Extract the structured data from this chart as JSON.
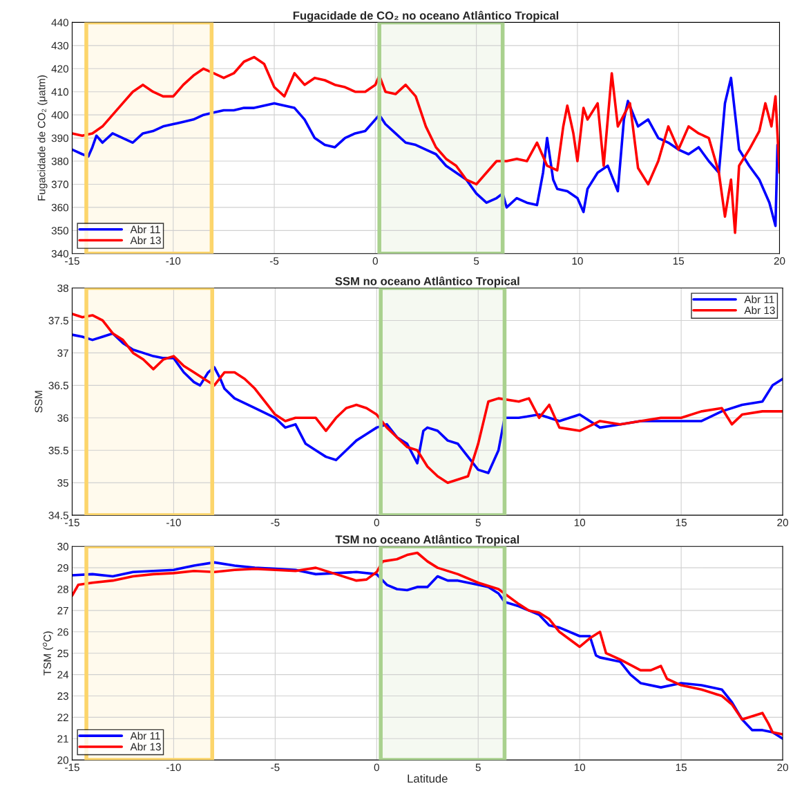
{
  "chart_data": [
    {
      "type": "line",
      "title": "Fugacidade de CO₂ no oceano Atlântico Tropical",
      "ylabel": "Fugacidade de CO₂ (μatm)",
      "xlim": [
        -15,
        20
      ],
      "xticks": [
        -15,
        -10,
        -5,
        0,
        5,
        10,
        15,
        20
      ],
      "ylim": [
        340,
        440
      ],
      "yticks": [
        340,
        350,
        360,
        370,
        380,
        390,
        400,
        410,
        420,
        430,
        440
      ],
      "grid": true,
      "legend": "bottom left",
      "bands": [
        {
          "axis": "x",
          "from": -14.3,
          "to": -8.1,
          "color": "#fcd56b"
        },
        {
          "axis": "x",
          "from": 0.2,
          "to": 6.3,
          "color": "#a9d18e"
        }
      ],
      "series": [
        {
          "name": "Abr 11",
          "color": "#0000ff",
          "x": [
            -15,
            -14.5,
            -14.2,
            -14,
            -13.8,
            -13.5,
            -13,
            -12.5,
            -12,
            -11.5,
            -11,
            -10.5,
            -10,
            -9.5,
            -9,
            -8.5,
            -8,
            -7.5,
            -7,
            -6.5,
            -6,
            -5.5,
            -5,
            -4.5,
            -4,
            -3.5,
            -3,
            -2.5,
            -2,
            -1.5,
            -1,
            -0.5,
            0,
            0.2,
            0.5,
            1,
            1.5,
            2,
            2.5,
            3,
            3.5,
            4,
            4.5,
            5,
            5.5,
            6,
            6.3,
            6.5,
            7,
            7.5,
            8,
            8.3,
            8.5,
            8.8,
            9,
            9.5,
            10,
            10.3,
            10.5,
            11,
            11.5,
            12,
            12.3,
            12.5,
            13,
            13.5,
            14,
            14.5,
            15,
            15.5,
            16,
            16.5,
            17,
            17.3,
            17.6,
            18,
            18.5,
            19,
            19.5,
            19.8,
            19.9
          ],
          "values": [
            385,
            383,
            382,
            386,
            391,
            388,
            392,
            390,
            388,
            392,
            393,
            395,
            396,
            397,
            398,
            400,
            401,
            402,
            402,
            403,
            403,
            404,
            405,
            404,
            403,
            398,
            390,
            387,
            386,
            390,
            392,
            393,
            398,
            400,
            396,
            392,
            388,
            387,
            385,
            383,
            378,
            375,
            372,
            366,
            362,
            364,
            366,
            360,
            364,
            362,
            361,
            375,
            390,
            372,
            368,
            367,
            364,
            358,
            368,
            375,
            378,
            367,
            398,
            406,
            395,
            398,
            390,
            388,
            385,
            383,
            386,
            380,
            375,
            405,
            416,
            385,
            378,
            372,
            362,
            352,
            387
          ]
        },
        {
          "name": "Abr 13",
          "color": "#ff0000",
          "x": [
            -15,
            -14.5,
            -14,
            -13.5,
            -13,
            -12.5,
            -12,
            -11.5,
            -11,
            -10.5,
            -10,
            -9.5,
            -9,
            -8.5,
            -8,
            -7.5,
            -7,
            -6.5,
            -6,
            -5.5,
            -5,
            -4.5,
            -4,
            -3.5,
            -3,
            -2.5,
            -2,
            -1.5,
            -1,
            -0.5,
            0,
            0.2,
            0.5,
            1,
            1.5,
            2,
            2.5,
            3,
            3.5,
            4,
            4.5,
            5,
            5.5,
            6,
            6.5,
            7,
            7.5,
            8,
            8.5,
            9,
            9.3,
            9.5,
            9.8,
            10,
            10.3,
            10.5,
            11,
            11.3,
            11.7,
            12,
            12.3,
            12.6,
            13,
            13.5,
            14,
            14.5,
            15,
            15.5,
            16,
            16.5,
            17,
            17.3,
            17.6,
            17.8,
            18,
            18.5,
            19,
            19.3,
            19.6,
            19.8,
            20
          ],
          "values": [
            392,
            391,
            392,
            395,
            400,
            405,
            410,
            413,
            410,
            408,
            408,
            413,
            417,
            420,
            418,
            416,
            418,
            423,
            425,
            422,
            412,
            408,
            418,
            413,
            416,
            415,
            413,
            412,
            410,
            410,
            413,
            417,
            410,
            409,
            413,
            408,
            395,
            386,
            381,
            378,
            372,
            370,
            375,
            380,
            380,
            381,
            380,
            388,
            378,
            376,
            395,
            404,
            392,
            380,
            403,
            398,
            405,
            378,
            418,
            395,
            400,
            405,
            377,
            370,
            380,
            395,
            385,
            395,
            392,
            390,
            375,
            356,
            372,
            349,
            378,
            385,
            393,
            405,
            395,
            408,
            375
          ]
        }
      ]
    },
    {
      "type": "line",
      "title": "SSM no oceano Atlântico Tropical",
      "ylabel": "SSM",
      "xlim": [
        -15,
        20
      ],
      "xticks": [
        -15,
        -10,
        -5,
        0,
        5,
        10,
        15,
        20
      ],
      "ylim": [
        34.5,
        38
      ],
      "yticks": [
        34.5,
        35,
        35.5,
        36,
        36.5,
        37,
        37.5,
        38
      ],
      "grid": true,
      "legend": "top right",
      "bands": [
        {
          "axis": "x",
          "from": -14.3,
          "to": -8.1,
          "color": "#fcd56b"
        },
        {
          "axis": "x",
          "from": 0.2,
          "to": 6.3,
          "color": "#a9d18e"
        }
      ],
      "series": [
        {
          "name": "Abr 11",
          "color": "#0000ff",
          "x": [
            -15,
            -14.5,
            -14,
            -13.5,
            -13,
            -12.5,
            -12,
            -11.5,
            -11,
            -10.5,
            -10,
            -9.5,
            -9,
            -8.7,
            -8.3,
            -8,
            -7.7,
            -7.5,
            -7,
            -6,
            -5,
            -4.5,
            -4,
            -3.5,
            -3,
            -2.5,
            -2,
            -1.5,
            -1,
            -0.5,
            0,
            0.5,
            1,
            1.5,
            2,
            2.3,
            2.5,
            3,
            3.5,
            4,
            4.5,
            5,
            5.5,
            6,
            6.3,
            7,
            8,
            9,
            10,
            11,
            12,
            13,
            14,
            15,
            16,
            17,
            18,
            19,
            19.5,
            20
          ],
          "values": [
            37.28,
            37.25,
            37.2,
            37.25,
            37.3,
            37.15,
            37.05,
            37.0,
            36.95,
            36.92,
            36.92,
            36.7,
            36.55,
            36.5,
            36.7,
            36.78,
            36.6,
            36.45,
            36.3,
            36.15,
            36.0,
            35.85,
            35.9,
            35.6,
            35.5,
            35.4,
            35.35,
            35.5,
            35.65,
            35.75,
            35.85,
            35.9,
            35.7,
            35.6,
            35.3,
            35.8,
            35.85,
            35.8,
            35.65,
            35.6,
            35.4,
            35.2,
            35.15,
            35.5,
            36.0,
            36.0,
            36.05,
            35.95,
            36.05,
            35.85,
            35.9,
            35.95,
            35.95,
            35.95,
            35.95,
            36.1,
            36.2,
            36.25,
            36.5,
            36.6
          ]
        },
        {
          "name": "Abr 13",
          "color": "#ff0000",
          "x": [
            -15,
            -14.5,
            -14,
            -13.5,
            -13,
            -12.5,
            -12,
            -11.5,
            -11,
            -10.5,
            -10,
            -9.5,
            -9,
            -8.5,
            -8,
            -7.5,
            -7,
            -6.5,
            -6,
            -5.5,
            -5,
            -4.5,
            -4,
            -3,
            -2.5,
            -2,
            -1.5,
            -1,
            -0.5,
            0,
            0.5,
            1,
            1.5,
            2,
            2.5,
            3,
            3.5,
            4,
            4.5,
            5,
            5.5,
            6,
            7,
            7.5,
            8,
            8.5,
            9,
            10,
            11,
            12,
            13,
            14,
            15,
            16,
            17,
            17.5,
            18,
            19,
            20
          ],
          "values": [
            37.6,
            37.55,
            37.58,
            37.5,
            37.3,
            37.2,
            37.0,
            36.9,
            36.75,
            36.9,
            36.95,
            36.8,
            36.7,
            36.6,
            36.5,
            36.7,
            36.7,
            36.6,
            36.45,
            36.25,
            36.05,
            35.95,
            36.0,
            36.0,
            35.8,
            36.0,
            36.15,
            36.2,
            36.15,
            36.05,
            35.85,
            35.7,
            35.55,
            35.5,
            35.25,
            35.1,
            35.0,
            35.05,
            35.1,
            35.6,
            36.25,
            36.3,
            36.25,
            36.3,
            36.0,
            36.2,
            35.85,
            35.8,
            35.95,
            35.9,
            35.95,
            36.0,
            36.0,
            36.1,
            36.15,
            35.9,
            36.05,
            36.1,
            36.1
          ]
        }
      ]
    },
    {
      "type": "line",
      "title": "TSM no oceano Atlântico Tropical",
      "xlabel": "Latitude",
      "ylabel": "TSM ($^{o}$C)",
      "xlim": [
        -15,
        20
      ],
      "xticks": [
        -15,
        -10,
        -5,
        0,
        5,
        10,
        15,
        20
      ],
      "ylim": [
        20,
        30
      ],
      "yticks": [
        20,
        21,
        22,
        23,
        24,
        25,
        26,
        27,
        28,
        29,
        30
      ],
      "grid": true,
      "legend": "bottom left",
      "bands": [
        {
          "axis": "x",
          "from": -14.3,
          "to": -8.1,
          "color": "#fcd56b"
        },
        {
          "axis": "x",
          "from": 0.2,
          "to": 6.3,
          "color": "#a9d18e"
        }
      ],
      "series": [
        {
          "name": "Abr 11",
          "color": "#0000ff",
          "x": [
            -15,
            -14,
            -13,
            -12,
            -11,
            -10,
            -9,
            -8,
            -7,
            -6,
            -5,
            -4,
            -3,
            -2,
            -1,
            0,
            0.5,
            1,
            1.5,
            2,
            2.5,
            3,
            3.5,
            4,
            5,
            5.5,
            6,
            6.3,
            7,
            8,
            8.5,
            9,
            10,
            10.5,
            10.8,
            11,
            12,
            12.5,
            13,
            14,
            15,
            16,
            17,
            17.5,
            18,
            18.5,
            19,
            19.5,
            20
          ],
          "values": [
            28.65,
            28.7,
            28.6,
            28.8,
            28.85,
            28.9,
            29.1,
            29.25,
            29.1,
            29.0,
            28.95,
            28.9,
            28.7,
            28.75,
            28.8,
            28.7,
            28.2,
            28.0,
            27.95,
            28.1,
            28.1,
            28.6,
            28.4,
            28.4,
            28.2,
            28.1,
            27.8,
            27.4,
            27.2,
            26.8,
            26.3,
            26.2,
            25.8,
            25.8,
            24.9,
            24.8,
            24.6,
            24.0,
            23.6,
            23.4,
            23.6,
            23.5,
            23.3,
            22.7,
            21.9,
            21.4,
            21.4,
            21.3,
            21.0
          ]
        },
        {
          "name": "Abr 13",
          "color": "#ff0000",
          "x": [
            -15,
            -14.7,
            -14,
            -13,
            -12,
            -11,
            -10,
            -9,
            -8,
            -7,
            -6,
            -5,
            -4,
            -3,
            -2,
            -1,
            -0.5,
            0,
            0.3,
            1,
            1.5,
            2,
            2.5,
            3,
            4,
            5,
            6,
            7,
            7.5,
            8,
            8.5,
            9,
            10,
            10.5,
            11,
            11.3,
            12,
            13,
            13.5,
            14,
            14.3,
            15,
            16,
            17,
            17.5,
            18,
            19,
            19.3,
            19.5,
            20
          ],
          "values": [
            27.7,
            28.2,
            28.3,
            28.4,
            28.6,
            28.7,
            28.75,
            28.85,
            28.8,
            28.9,
            28.95,
            28.9,
            28.85,
            29.0,
            28.7,
            28.4,
            28.45,
            28.8,
            29.3,
            29.4,
            29.6,
            29.7,
            29.3,
            29.0,
            28.7,
            28.3,
            28.0,
            27.3,
            27.0,
            26.9,
            26.6,
            26.0,
            25.3,
            25.7,
            26.0,
            25.0,
            24.7,
            24.2,
            24.2,
            24.4,
            23.8,
            23.5,
            23.3,
            23.0,
            22.6,
            21.9,
            22.2,
            21.7,
            21.3,
            21.2
          ]
        }
      ]
    }
  ]
}
